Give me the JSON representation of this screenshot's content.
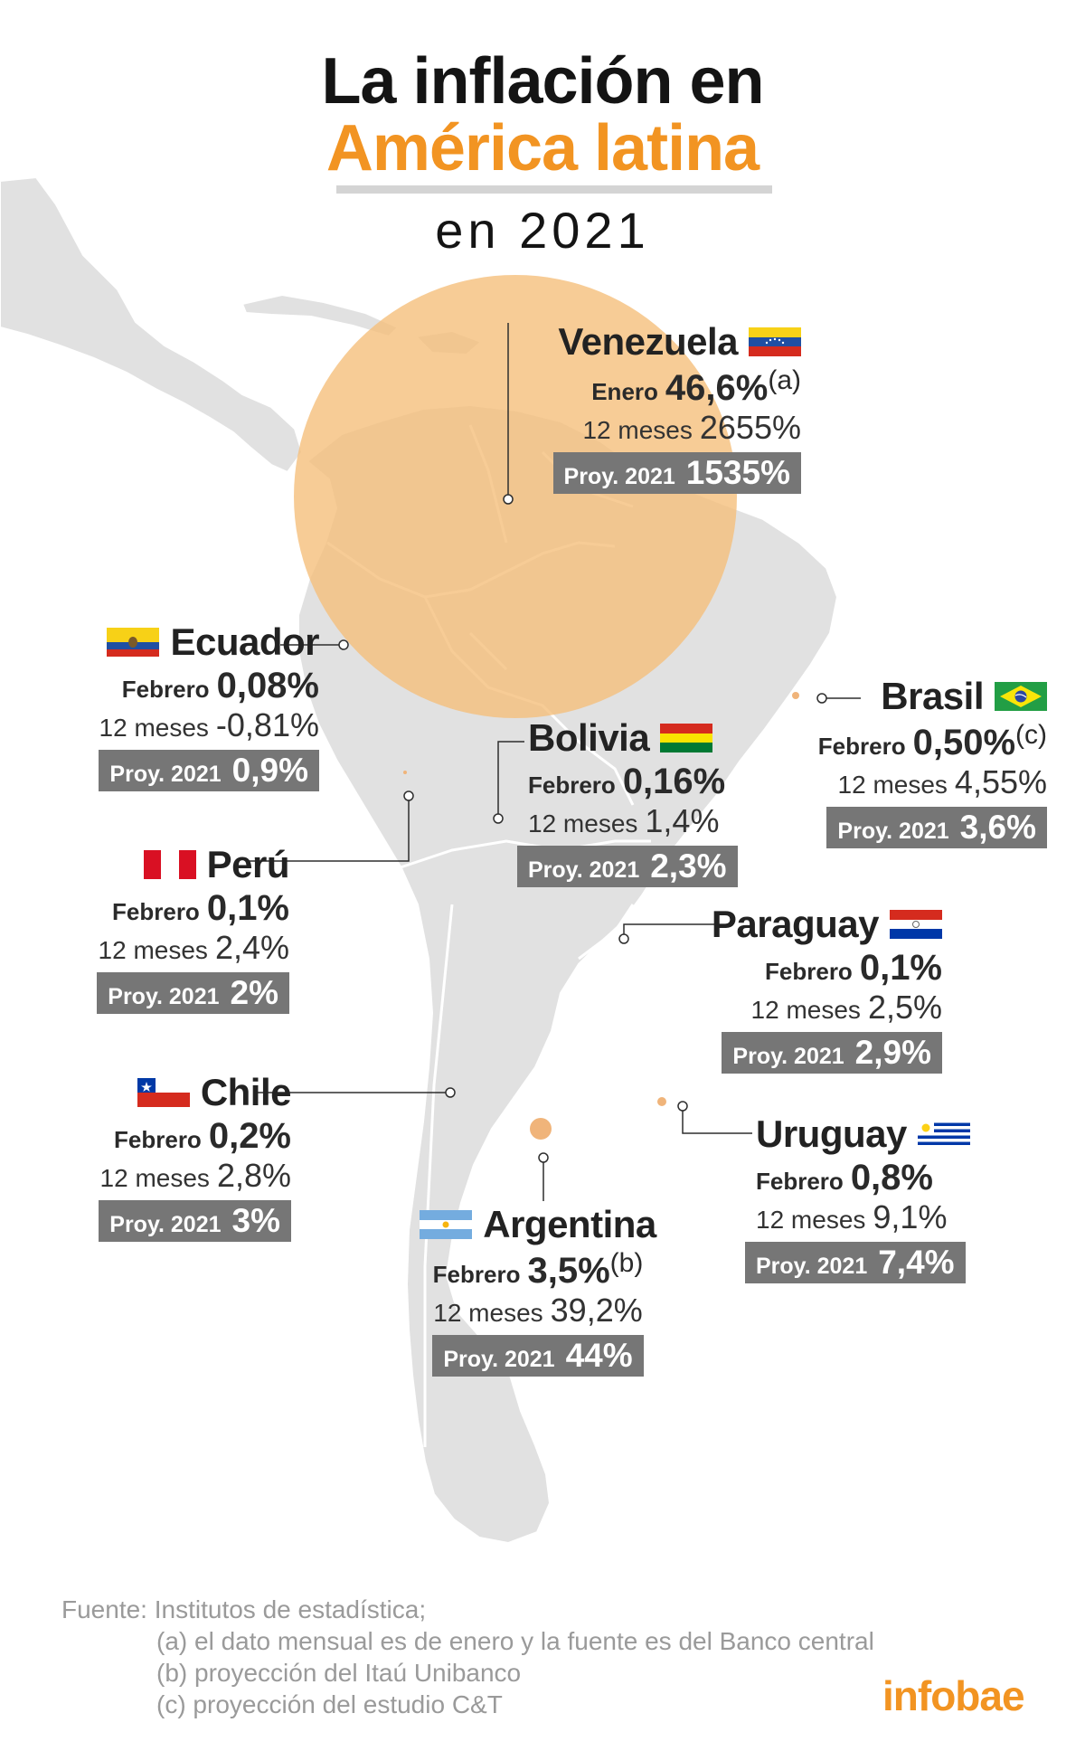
{
  "title": {
    "line1": "La inflación en",
    "line2": "América latina",
    "line3": "en 2021"
  },
  "colors": {
    "accent": "#f29422",
    "land": "#e1e1e1",
    "borders": "#ffffff",
    "venezuela_circle": "#f5be78",
    "proy_box": "#767676",
    "source_text": "#9a9a9a"
  },
  "countries": {
    "venezuela": {
      "name": "Venezuela",
      "flag_icon": "venezuela-flag-icon",
      "monthly_label": "Enero",
      "monthly_value": "46,6%",
      "note": "(a)",
      "yearly_label": "12 meses",
      "yearly_value": "2655%",
      "proy_label": "Proy. 2021",
      "proy_value": "1535%"
    },
    "ecuador": {
      "name": "Ecuador",
      "flag_icon": "ecuador-flag-icon",
      "monthly_label": "Febrero",
      "monthly_value": "0,08%",
      "yearly_label": "12 meses",
      "yearly_value": "-0,81%",
      "proy_label": "Proy. 2021",
      "proy_value": "0,9%"
    },
    "brasil": {
      "name": "Brasil",
      "flag_icon": "brazil-flag-icon",
      "monthly_label": "Febrero",
      "monthly_value": "0,50%",
      "note": "(c)",
      "yearly_label": "12 meses",
      "yearly_value": "4,55%",
      "proy_label": "Proy. 2021",
      "proy_value": "3,6%"
    },
    "bolivia": {
      "name": "Bolivia",
      "flag_icon": "bolivia-flag-icon",
      "monthly_label": "Febrero",
      "monthly_value": "0,16%",
      "yearly_label": "12 meses",
      "yearly_value": "1,4%",
      "proy_label": "Proy. 2021",
      "proy_value": "2,3%"
    },
    "peru": {
      "name": "Perú",
      "flag_icon": "peru-flag-icon",
      "monthly_label": "Febrero",
      "monthly_value": "0,1%",
      "yearly_label": "12 meses",
      "yearly_value": "2,4%",
      "proy_label": "Proy. 2021",
      "proy_value": "2%"
    },
    "paraguay": {
      "name": "Paraguay",
      "flag_icon": "paraguay-flag-icon",
      "monthly_label": "Febrero",
      "monthly_value": "0,1%",
      "yearly_label": "12 meses",
      "yearly_value": "2,5%",
      "proy_label": "Proy. 2021",
      "proy_value": "2,9%"
    },
    "chile": {
      "name": "Chile",
      "flag_icon": "chile-flag-icon",
      "monthly_label": "Febrero",
      "monthly_value": "0,2%",
      "yearly_label": "12 meses",
      "yearly_value": "2,8%",
      "proy_label": "Proy. 2021",
      "proy_value": "3%"
    },
    "uruguay": {
      "name": "Uruguay",
      "flag_icon": "uruguay-flag-icon",
      "monthly_label": "Febrero",
      "monthly_value": "0,8%",
      "yearly_label": "12 meses",
      "yearly_value": "9,1%",
      "proy_label": "Proy. 2021",
      "proy_value": "7,4%"
    },
    "argentina": {
      "name": "Argentina",
      "flag_icon": "argentina-flag-icon",
      "monthly_label": "Febrero",
      "monthly_value": "3,5%",
      "note": "(b)",
      "yearly_label": "12 meses",
      "yearly_value": "39,2%",
      "proy_label": "Proy. 2021",
      "proy_value": "44%"
    }
  },
  "source": {
    "label": "Fuente:",
    "text": "Institutos de estadística;",
    "notes": [
      "(a) el dato mensual es de enero y la fuente es del Banco central",
      "(b) proyección del Itaú Unibanco",
      "(c) proyección del estudio C&T"
    ]
  },
  "logo": "infobae"
}
